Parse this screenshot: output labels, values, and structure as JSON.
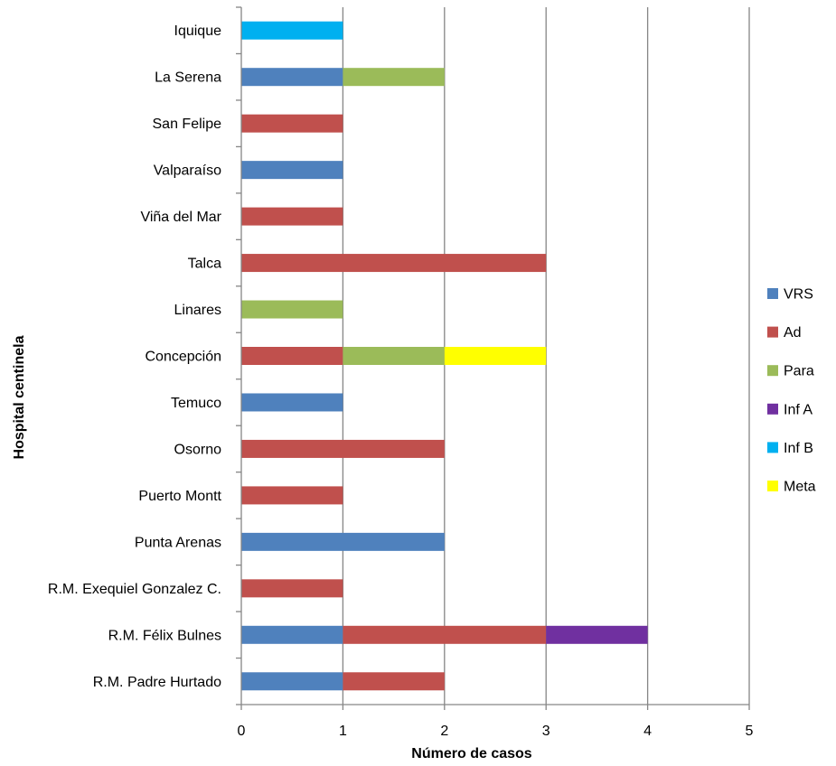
{
  "chart_data": {
    "type": "bar",
    "orientation": "horizontal",
    "stacked": true,
    "title": "",
    "xlabel": "Número de casos",
    "ylabel": "Hospital  centinela",
    "xlim": [
      0,
      5
    ],
    "xticks": [
      "0",
      "1",
      "2",
      "3",
      "4",
      "5"
    ],
    "grid": true,
    "legend_position": "right",
    "categories": [
      "Iquique",
      "La Serena",
      "San Felipe",
      "Valparaíso",
      "Viña del Mar",
      "Talca",
      "Linares",
      "Concepción",
      "Temuco",
      "Osorno",
      "Puerto Montt",
      "Punta Arenas",
      "R.M. Exequiel Gonzalez C.",
      "R.M. Félix Bulnes",
      "R.M. Padre Hurtado"
    ],
    "series": [
      {
        "name": "VRS",
        "color": "#4F81BD",
        "values": [
          0,
          1,
          0,
          1,
          0,
          0,
          0,
          0,
          1,
          0,
          0,
          2,
          0,
          1,
          1
        ]
      },
      {
        "name": "Ad",
        "color": "#C0504D",
        "values": [
          0,
          0,
          1,
          0,
          1,
          3,
          0,
          1,
          0,
          2,
          1,
          0,
          1,
          2,
          1
        ]
      },
      {
        "name": "Para",
        "color": "#9BBB59",
        "values": [
          0,
          1,
          0,
          0,
          0,
          0,
          1,
          1,
          0,
          0,
          0,
          0,
          0,
          0,
          0
        ]
      },
      {
        "name": "Inf A",
        "color": "#7030A0",
        "values": [
          0,
          0,
          0,
          0,
          0,
          0,
          0,
          0,
          0,
          0,
          0,
          0,
          0,
          1,
          0
        ]
      },
      {
        "name": "Inf B",
        "color": "#00B0F0",
        "values": [
          1,
          0,
          0,
          0,
          0,
          0,
          0,
          0,
          0,
          0,
          0,
          0,
          0,
          0,
          0
        ]
      },
      {
        "name": "Meta",
        "color": "#FFFF00",
        "values": [
          0,
          0,
          0,
          0,
          0,
          0,
          0,
          1,
          0,
          0,
          0,
          0,
          0,
          0,
          0
        ]
      }
    ]
  }
}
